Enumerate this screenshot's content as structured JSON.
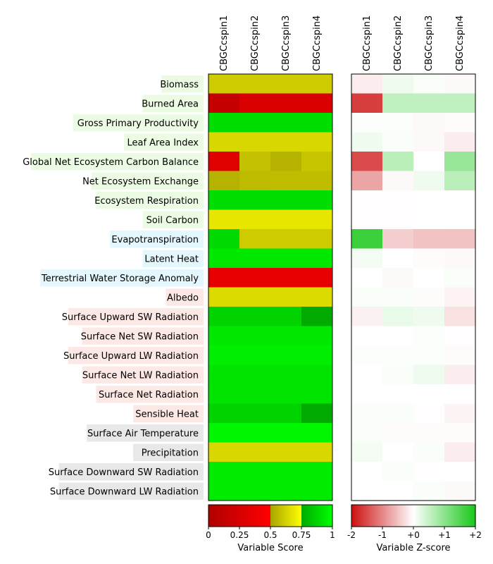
{
  "chart_data": {
    "type": "heatmap",
    "columns": [
      "CBGCcspin1",
      "CBGCcspin2",
      "CBGCcspin3",
      "CBGCcspin4"
    ],
    "rows": [
      {
        "label": "Biomass",
        "group": "ecosystem"
      },
      {
        "label": "Burned Area",
        "group": "ecosystem"
      },
      {
        "label": "Gross Primary Productivity",
        "group": "ecosystem"
      },
      {
        "label": "Leaf Area Index",
        "group": "ecosystem"
      },
      {
        "label": "Global Net Ecosystem Carbon Balance",
        "group": "ecosystem"
      },
      {
        "label": "Net Ecosystem Exchange",
        "group": "ecosystem"
      },
      {
        "label": "Ecosystem Respiration",
        "group": "ecosystem"
      },
      {
        "label": "Soil Carbon",
        "group": "ecosystem"
      },
      {
        "label": "Evapotranspiration",
        "group": "hydrology"
      },
      {
        "label": "Latent Heat",
        "group": "hydrology"
      },
      {
        "label": "Terrestrial Water Storage Anomaly",
        "group": "hydrology"
      },
      {
        "label": "Albedo",
        "group": "radiation"
      },
      {
        "label": "Surface Upward SW Radiation",
        "group": "radiation"
      },
      {
        "label": "Surface Net SW Radiation",
        "group": "radiation"
      },
      {
        "label": "Surface Upward LW Radiation",
        "group": "radiation"
      },
      {
        "label": "Surface Net LW Radiation",
        "group": "radiation"
      },
      {
        "label": "Surface Net Radiation",
        "group": "radiation"
      },
      {
        "label": "Sensible Heat",
        "group": "radiation"
      },
      {
        "label": "Surface Air Temperature",
        "group": "forcing"
      },
      {
        "label": "Precipitation",
        "group": "forcing"
      },
      {
        "label": "Surface Downward SW Radiation",
        "group": "forcing"
      },
      {
        "label": "Surface Downward LW Radiation",
        "group": "forcing"
      }
    ],
    "group_colors": {
      "ecosystem": "#ecfce4",
      "hydrology": "#e4f7fc",
      "radiation": "#fce8e4",
      "forcing": "#e8e8e8"
    },
    "scores": [
      [
        0.61,
        0.61,
        0.61,
        0.61
      ],
      [
        0.13,
        0.27,
        0.27,
        0.27
      ],
      [
        0.9,
        0.9,
        0.9,
        0.9
      ],
      [
        0.64,
        0.64,
        0.64,
        0.64
      ],
      [
        0.3,
        0.58,
        0.54,
        0.59
      ],
      [
        0.54,
        0.56,
        0.57,
        0.57
      ],
      [
        0.9,
        0.9,
        0.9,
        0.9
      ],
      [
        0.68,
        0.68,
        0.68,
        0.68
      ],
      [
        0.89,
        0.61,
        0.61,
        0.61
      ],
      [
        0.93,
        0.93,
        0.93,
        0.93
      ],
      [
        0.35,
        0.35,
        0.35,
        0.35
      ],
      [
        0.65,
        0.65,
        0.65,
        0.65
      ],
      [
        0.87,
        0.87,
        0.87,
        0.75
      ],
      [
        0.93,
        0.93,
        0.93,
        0.93
      ],
      [
        0.95,
        0.95,
        0.95,
        0.95
      ],
      [
        0.92,
        0.92,
        0.92,
        0.92
      ],
      [
        0.92,
        0.92,
        0.92,
        0.92
      ],
      [
        0.87,
        0.87,
        0.87,
        0.75
      ],
      [
        0.97,
        0.97,
        0.97,
        0.97
      ],
      [
        0.64,
        0.64,
        0.64,
        0.64
      ],
      [
        0.94,
        0.94,
        0.94,
        0.94
      ],
      [
        0.94,
        0.94,
        0.94,
        0.94
      ]
    ],
    "zscores": [
      [
        -0.15,
        0.15,
        0.05,
        -0.05
      ],
      [
        -1.6,
        0.55,
        0.55,
        0.55
      ],
      [
        0.03,
        0.03,
        -0.05,
        -0.03
      ],
      [
        0.12,
        0.05,
        -0.05,
        -0.15
      ],
      [
        -1.5,
        0.6,
        0.0,
        0.9
      ],
      [
        -0.75,
        -0.05,
        0.15,
        0.6
      ],
      [
        -0.02,
        -0.02,
        0.0,
        0.02
      ],
      [
        -0.02,
        -0.02,
        0.0,
        0.02
      ],
      [
        1.7,
        -0.4,
        -0.5,
        -0.5
      ],
      [
        0.1,
        0.0,
        -0.03,
        -0.05
      ],
      [
        0.0,
        -0.05,
        0.0,
        0.05
      ],
      [
        0.05,
        0.05,
        -0.03,
        -0.1
      ],
      [
        -0.12,
        0.2,
        0.15,
        -0.25
      ],
      [
        0.0,
        0.0,
        0.03,
        -0.02
      ],
      [
        0.03,
        0.03,
        0.03,
        -0.03
      ],
      [
        0.0,
        0.05,
        0.15,
        -0.15
      ],
      [
        0.0,
        0.0,
        0.0,
        0.0
      ],
      [
        0.05,
        0.05,
        -0.02,
        -0.08
      ],
      [
        0.05,
        -0.03,
        -0.03,
        -0.03
      ],
      [
        0.1,
        0.0,
        0.05,
        -0.15
      ],
      [
        0.0,
        0.05,
        -0.02,
        0.0
      ],
      [
        0.0,
        0.0,
        0.05,
        -0.05
      ]
    ],
    "score_colorbar": {
      "range": [
        0,
        1
      ],
      "ticks": [
        0,
        0.25,
        0.5,
        0.75,
        1
      ],
      "tick_labels": [
        "0",
        "0.25",
        "0.5",
        "0.75",
        "1"
      ],
      "label": "Variable Score"
    },
    "zscore_colorbar": {
      "range": [
        -2,
        2
      ],
      "ticks": [
        -2,
        -1,
        0,
        1,
        2
      ],
      "tick_labels": [
        "-2",
        "-1",
        "+0",
        "+1",
        "+2"
      ],
      "label": "Variable Z-score"
    }
  }
}
